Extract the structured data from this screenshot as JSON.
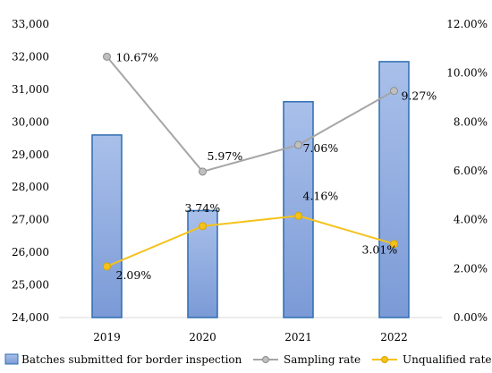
{
  "chart_data": {
    "type": "bar-line-combo",
    "categories": [
      "2019",
      "2020",
      "2021",
      "2022"
    ],
    "bar_series": {
      "name": "Batches submitted for border inspection",
      "values": [
        29600,
        27280,
        30620,
        31850
      ],
      "axis": "left",
      "color": "#7f9fd8",
      "border_color": "#2e6db0"
    },
    "line_series": [
      {
        "name": "Sampling rate",
        "values": [
          10.67,
          5.97,
          7.06,
          9.27
        ],
        "labels": [
          "10.67%",
          "5.97%",
          "7.06%",
          "9.27%"
        ],
        "axis": "right",
        "color": "#a6a6a6"
      },
      {
        "name": "Unqualified rate",
        "values": [
          2.09,
          3.74,
          4.16,
          3.01
        ],
        "labels": [
          "2.09%",
          "3.74%",
          "4.16%",
          "3.01%"
        ],
        "axis": "right",
        "color": "#f5c21b"
      }
    ],
    "left_axis": {
      "ylim": [
        24000,
        33000
      ],
      "ticks": [
        "24,000",
        "25,000",
        "26,000",
        "27,000",
        "28,000",
        "29,000",
        "30,000",
        "31,000",
        "32,000",
        "33,000"
      ]
    },
    "right_axis": {
      "ylim": [
        0,
        12
      ],
      "ticks": [
        "0.00%",
        "2.00%",
        "4.00%",
        "6.00%",
        "8.00%",
        "10.00%",
        "12.00%"
      ]
    },
    "legend_position": "bottom",
    "grid": false
  }
}
